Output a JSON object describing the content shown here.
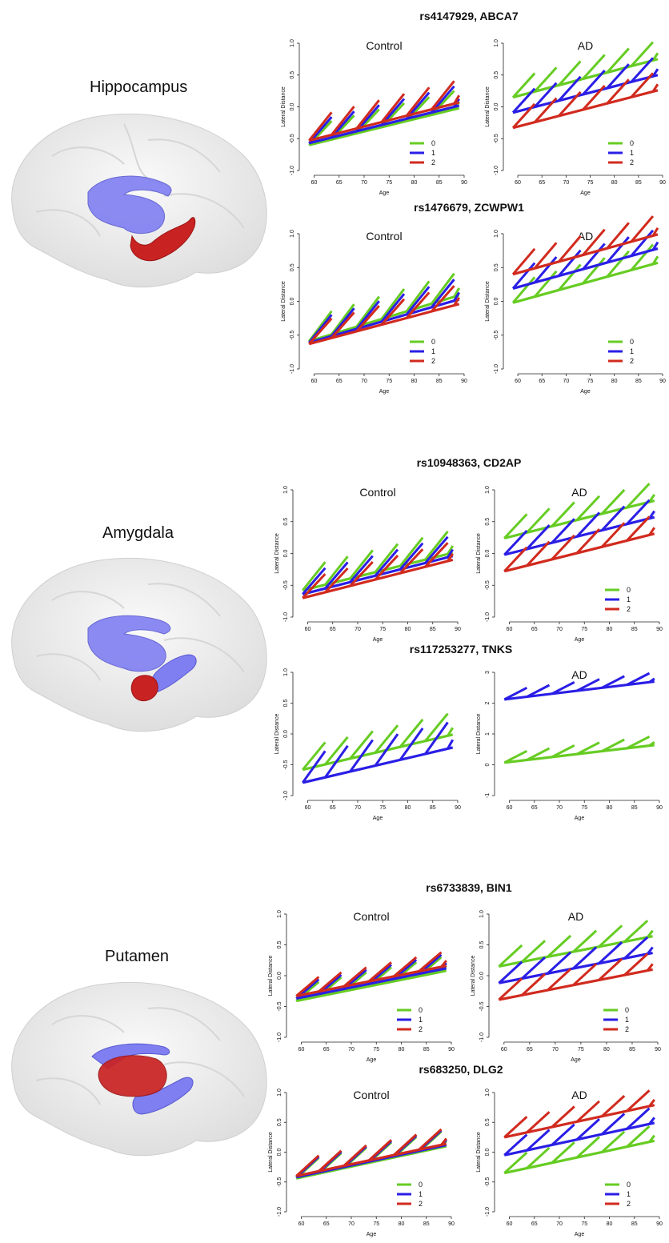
{
  "colors": {
    "genotype_0": "#66cc22",
    "genotype_1": "#2a1ee6",
    "genotype_2": "#d12a1e",
    "brain": "#ebebeb",
    "blue_struct": "#7f7ff2",
    "red_struct": "#c92222"
  },
  "sections": [
    {
      "region": "Hippocampus",
      "highlight": "hippocampus"
    },
    {
      "region": "Amygdala",
      "highlight": "amygdala"
    },
    {
      "region": "Putamen",
      "highlight": "putamen"
    }
  ],
  "chart_data": [
    {
      "id": "c1",
      "snp_title": "rs4147929, ABCA7",
      "panel_title": "Control",
      "type": "line",
      "xlabel": "Age",
      "ylabel": "Lateral Distance",
      "xlim": [
        58,
        90
      ],
      "ylim": [
        -1,
        1
      ],
      "xticks": [
        60,
        65,
        70,
        75,
        80,
        85,
        90
      ],
      "yticks": [
        -1.0,
        -0.5,
        0.0,
        0.5,
        1.0
      ],
      "legend": "bottom-right",
      "series": [
        {
          "name": "0",
          "color": "green",
          "start": -0.6,
          "end": -0.02,
          "slope": 0.05
        },
        {
          "name": "1",
          "color": "blue",
          "start": -0.57,
          "end": 0.02,
          "slope": 0.055
        },
        {
          "name": "2",
          "color": "red",
          "start": -0.53,
          "end": 0.07,
          "slope": 0.06
        }
      ]
    },
    {
      "id": "c2",
      "snp_title": "",
      "panel_title": "AD",
      "type": "line",
      "xlabel": "Age",
      "ylabel": "Lateral Distance",
      "xlim": [
        58,
        90
      ],
      "ylim": [
        -1,
        1
      ],
      "xticks": [
        60,
        65,
        70,
        75,
        80,
        85,
        90
      ],
      "yticks": [
        -1.0,
        -0.5,
        0.0,
        0.5,
        1.0
      ],
      "legend": "bottom-right",
      "series": [
        {
          "name": "0",
          "color": "green",
          "start": 0.15,
          "end": 0.75,
          "slope": 0.05
        },
        {
          "name": "1",
          "color": "blue",
          "start": -0.09,
          "end": 0.5,
          "slope": 0.05
        },
        {
          "name": "2",
          "color": "red",
          "start": -0.33,
          "end": 0.26,
          "slope": 0.05
        }
      ]
    },
    {
      "id": "c3",
      "snp_title": "rs1476679, ZCWPW1",
      "panel_title": "Control",
      "type": "line",
      "xlabel": "Age",
      "ylabel": "Lateral Distance",
      "xlim": [
        58,
        90
      ],
      "ylim": [
        -1,
        1
      ],
      "xticks": [
        60,
        65,
        70,
        75,
        80,
        85,
        90
      ],
      "yticks": [
        -1.0,
        -0.5,
        0.0,
        0.5,
        1.0
      ],
      "legend": "bottom-right",
      "series": [
        {
          "name": "0",
          "color": "green",
          "start": -0.59,
          "end": 0.09,
          "slope": 0.06
        },
        {
          "name": "1",
          "color": "blue",
          "start": -0.61,
          "end": 0.03,
          "slope": 0.055
        },
        {
          "name": "2",
          "color": "red",
          "start": -0.63,
          "end": -0.04,
          "slope": 0.05
        }
      ]
    },
    {
      "id": "c4",
      "snp_title": "",
      "panel_title": "AD",
      "type": "line",
      "xlabel": "Age",
      "ylabel": "Lateral Distance",
      "xlim": [
        58,
        90
      ],
      "ylim": [
        -1,
        1
      ],
      "xticks": [
        60,
        65,
        70,
        75,
        80,
        85,
        90
      ],
      "yticks": [
        -1.0,
        -0.5,
        0.0,
        0.5,
        1.0
      ],
      "legend": "bottom-right",
      "series": [
        {
          "name": "0",
          "color": "green",
          "start": -0.02,
          "end": 0.57,
          "slope": 0.05
        },
        {
          "name": "1",
          "color": "blue",
          "start": 0.19,
          "end": 0.78,
          "slope": 0.05
        },
        {
          "name": "2",
          "color": "red",
          "start": 0.4,
          "end": 0.99,
          "slope": 0.05
        }
      ]
    },
    {
      "id": "c5",
      "snp_title": "rs10948363, CD2AP",
      "panel_title": "Control",
      "type": "line",
      "xlabel": "Age",
      "ylabel": "Lateral Distance",
      "xlim": [
        58,
        90
      ],
      "ylim": [
        -1,
        1
      ],
      "xticks": [
        60,
        65,
        70,
        75,
        80,
        85,
        90
      ],
      "yticks": [
        -1.0,
        -0.5,
        0.0,
        0.5,
        1.0
      ],
      "legend": "none",
      "series": [
        {
          "name": "0",
          "color": "green",
          "start": -0.58,
          "end": 0.01,
          "slope": 0.06
        },
        {
          "name": "1",
          "color": "blue",
          "start": -0.64,
          "end": -0.04,
          "slope": 0.055
        },
        {
          "name": "2",
          "color": "red",
          "start": -0.7,
          "end": -0.1,
          "slope": 0.05
        }
      ]
    },
    {
      "id": "c6",
      "snp_title": "",
      "panel_title": "AD",
      "type": "line",
      "xlabel": "Age",
      "ylabel": "Lateral Distance",
      "xlim": [
        58,
        90
      ],
      "ylim": [
        -1,
        1
      ],
      "xticks": [
        60,
        65,
        70,
        75,
        80,
        85,
        90
      ],
      "yticks": [
        -1.0,
        -0.5,
        0.0,
        0.5,
        1.0
      ],
      "legend": "bottom-right",
      "series": [
        {
          "name": "0",
          "color": "green",
          "start": 0.24,
          "end": 0.83,
          "slope": 0.05
        },
        {
          "name": "1",
          "color": "blue",
          "start": -0.02,
          "end": 0.57,
          "slope": 0.05
        },
        {
          "name": "2",
          "color": "red",
          "start": -0.28,
          "end": 0.31,
          "slope": 0.05
        }
      ]
    },
    {
      "id": "c7",
      "snp_title": "rs117253277, TNKS",
      "panel_title": "",
      "type": "line",
      "xlabel": "Age",
      "ylabel": "Lateral Distance",
      "xlim": [
        58,
        90
      ],
      "ylim": [
        -1,
        1
      ],
      "xticks": [
        60,
        65,
        70,
        75,
        80,
        85,
        90
      ],
      "yticks": [
        -1.0,
        -0.5,
        0.0,
        0.5,
        1.0
      ],
      "legend": "none",
      "series": [
        {
          "name": "0",
          "color": "green",
          "start": -0.58,
          "end": -0.01,
          "slope": 0.06
        },
        {
          "name": "1",
          "color": "blue",
          "start": -0.79,
          "end": -0.22,
          "slope": 0.07
        }
      ]
    },
    {
      "id": "c8",
      "snp_title": "",
      "panel_title": "AD",
      "type": "line",
      "xlabel": "Age",
      "ylabel": "Lateral Distance",
      "xlim": [
        58,
        90
      ],
      "ylim": [
        -1,
        3
      ],
      "xticks": [
        60,
        65,
        70,
        75,
        80,
        85,
        90
      ],
      "yticks": [
        -1,
        0,
        1,
        2,
        3
      ],
      "legend": "none",
      "series": [
        {
          "name": "0",
          "color": "green",
          "start": 0.07,
          "end": 0.64,
          "slope": 0.05
        },
        {
          "name": "1",
          "color": "blue",
          "start": 2.12,
          "end": 2.7,
          "slope": 0.05
        }
      ]
    },
    {
      "id": "c9",
      "snp_title": "rs6733839, BIN1",
      "panel_title": "Control",
      "type": "line",
      "xlabel": "Age",
      "ylabel": "Lateral Distance",
      "xlim": [
        58,
        90
      ],
      "ylim": [
        -1,
        1
      ],
      "xticks": [
        60,
        65,
        70,
        75,
        80,
        85,
        90
      ],
      "yticks": [
        -1.0,
        -0.5,
        0.0,
        0.5,
        1.0
      ],
      "legend": "bottom-right",
      "series": [
        {
          "name": "0",
          "color": "green",
          "start": -0.41,
          "end": 0.08,
          "slope": 0.04
        },
        {
          "name": "1",
          "color": "blue",
          "start": -0.37,
          "end": 0.12,
          "slope": 0.04
        },
        {
          "name": "2",
          "color": "red",
          "start": -0.33,
          "end": 0.16,
          "slope": 0.04
        }
      ]
    },
    {
      "id": "c10",
      "snp_title": "",
      "panel_title": "AD",
      "type": "line",
      "xlabel": "Age",
      "ylabel": "Lateral Distance",
      "xlim": [
        58,
        90
      ],
      "ylim": [
        -1,
        1
      ],
      "xticks": [
        60,
        65,
        70,
        75,
        80,
        85,
        90
      ],
      "yticks": [
        -1.0,
        -0.5,
        0.0,
        0.5,
        1.0
      ],
      "legend": "bottom-right",
      "series": [
        {
          "name": "0",
          "color": "green",
          "start": 0.15,
          "end": 0.64,
          "slope": 0.045
        },
        {
          "name": "1",
          "color": "blue",
          "start": -0.12,
          "end": 0.37,
          "slope": 0.045
        },
        {
          "name": "2",
          "color": "red",
          "start": -0.39,
          "end": 0.1,
          "slope": 0.045
        }
      ]
    },
    {
      "id": "c11",
      "snp_title": "rs683250, DLG2",
      "panel_title": "Control",
      "type": "line",
      "xlabel": "Age",
      "ylabel": "Lateral Distance",
      "xlim": [
        58,
        90
      ],
      "ylim": [
        -1,
        1
      ],
      "xticks": [
        60,
        65,
        70,
        75,
        80,
        85,
        90
      ],
      "yticks": [
        -1.0,
        -0.5,
        0.0,
        0.5,
        1.0
      ],
      "legend": "bottom-right",
      "series": [
        {
          "name": "0",
          "color": "green",
          "start": -0.44,
          "end": 0.1,
          "slope": 0.045
        },
        {
          "name": "1",
          "color": "blue",
          "start": -0.42,
          "end": 0.12,
          "slope": 0.045
        },
        {
          "name": "2",
          "color": "red",
          "start": -0.4,
          "end": 0.14,
          "slope": 0.045
        }
      ]
    },
    {
      "id": "c12",
      "snp_title": "",
      "panel_title": "AD",
      "type": "line",
      "xlabel": "Age",
      "ylabel": "Lateral Distance",
      "xlim": [
        58,
        90
      ],
      "ylim": [
        -1,
        1
      ],
      "xticks": [
        60,
        65,
        70,
        75,
        80,
        85,
        90
      ],
      "yticks": [
        -1.0,
        -0.5,
        0.0,
        0.5,
        1.0
      ],
      "legend": "bottom-right",
      "series": [
        {
          "name": "0",
          "color": "green",
          "start": -0.35,
          "end": 0.19,
          "slope": 0.045
        },
        {
          "name": "1",
          "color": "blue",
          "start": -0.05,
          "end": 0.49,
          "slope": 0.045
        },
        {
          "name": "2",
          "color": "red",
          "start": 0.25,
          "end": 0.79,
          "slope": 0.045
        }
      ]
    }
  ]
}
